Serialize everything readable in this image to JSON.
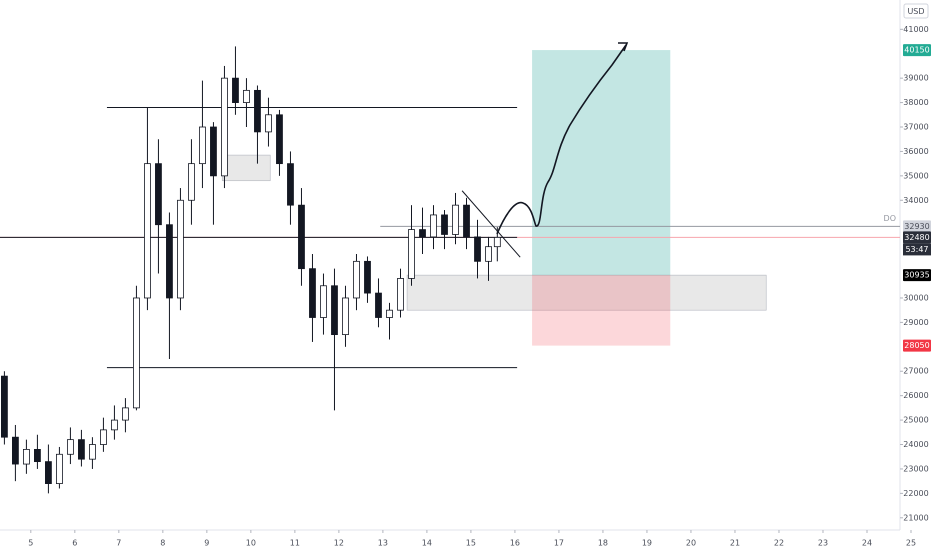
{
  "chart_data": {
    "type": "candlestick",
    "currency": "USD",
    "x": [
      4.4,
      4.65,
      4.9,
      5.15,
      5.4,
      5.65,
      5.9,
      6.15,
      6.4,
      6.65,
      6.9,
      7.15,
      7.4,
      7.65,
      7.9,
      8.15,
      8.4,
      8.65,
      8.9,
      9.15,
      9.4,
      9.65,
      9.9,
      10.15,
      10.4,
      10.65,
      10.9,
      11.15,
      11.4,
      11.65,
      11.9,
      12.15,
      12.4,
      12.65,
      12.9,
      13.15,
      13.4,
      13.65,
      13.9,
      14.15,
      14.4,
      14.65,
      14.9,
      15.15,
      15.4,
      15.6
    ],
    "open": [
      26800,
      24300,
      23200,
      23800,
      23300,
      22400,
      23600,
      24200,
      23400,
      24000,
      24600,
      25000,
      25500,
      30000,
      35500,
      33000,
      30000,
      34000,
      35500,
      37000,
      35000,
      39000,
      38000,
      38500,
      36800,
      37500,
      35500,
      33800,
      31200,
      29200,
      30500,
      28500,
      30000,
      31500,
      30200,
      29200,
      29500,
      30800,
      32800,
      32500,
      33400,
      32600,
      33800,
      32500,
      31500,
      32100
    ],
    "high": [
      27000,
      24800,
      24200,
      24400,
      24000,
      23900,
      24700,
      24600,
      24300,
      25100,
      25600,
      25900,
      30500,
      37800,
      36500,
      33500,
      34500,
      36500,
      38900,
      37200,
      39500,
      40300,
      39000,
      38700,
      38200,
      37700,
      36000,
      34500,
      31800,
      31000,
      31200,
      30500,
      31800,
      31700,
      30800,
      29800,
      31200,
      33800,
      33700,
      33800,
      33600,
      34300,
      34100,
      33200,
      32500,
      32900
    ],
    "low": [
      24000,
      22500,
      22800,
      23000,
      22000,
      22200,
      23200,
      23100,
      23000,
      23700,
      24200,
      24500,
      25400,
      29500,
      31000,
      27500,
      29500,
      33000,
      34500,
      33000,
      34500,
      37500,
      37000,
      35500,
      36200,
      35000,
      33000,
      30500,
      28200,
      28500,
      25400,
      28000,
      29500,
      29800,
      28800,
      28300,
      29200,
      30500,
      31800,
      32000,
      32000,
      32200,
      32000,
      30800,
      30700,
      31500
    ],
    "close": [
      24300,
      23200,
      23800,
      23300,
      22400,
      23600,
      24200,
      23400,
      24000,
      24600,
      25000,
      25500,
      30000,
      35500,
      33000,
      30000,
      34000,
      35500,
      37000,
      35000,
      39000,
      38000,
      38500,
      36800,
      37500,
      35500,
      33800,
      31200,
      29200,
      30500,
      28500,
      30000,
      31500,
      30200,
      29200,
      29500,
      30800,
      32800,
      32500,
      33400,
      32600,
      33800,
      32500,
      31500,
      32100,
      32480
    ],
    "up_color": "#ffffff",
    "down_color": "#131722",
    "wick_color": "#131722",
    "xlim": [
      4.3,
      24.75
    ],
    "ylim": [
      20500,
      42200
    ],
    "xticks": [
      5,
      6,
      7,
      8,
      9,
      10,
      11,
      12,
      13,
      14,
      15,
      16,
      17,
      18,
      19,
      20,
      21,
      22,
      23,
      24,
      25
    ],
    "yticks": [
      21000,
      22000,
      23000,
      24000,
      25000,
      26000,
      27000,
      29000,
      30000,
      34000,
      35000,
      36000,
      37000,
      38000,
      39000,
      41000
    ],
    "levels": [
      {
        "value": 37800,
        "from": 6.73,
        "to": 16.05,
        "color": "#131722"
      },
      {
        "value": 32480,
        "from": 4.3,
        "to": 16.05,
        "color": "#131722"
      },
      {
        "value": 27150,
        "from": 6.73,
        "to": 16.05,
        "color": "#131722"
      },
      {
        "value": 32930,
        "from": 12.94,
        "to": 24.75,
        "color": "#9598a1",
        "label": "DO"
      }
    ],
    "zones": [
      {
        "top": 35850,
        "bottom": 34800,
        "from": 9.35,
        "to": 10.44
      },
      {
        "top": 30935,
        "bottom": 29500,
        "from": 13.55,
        "to": 21.71
      }
    ],
    "position": {
      "entry": 30935,
      "target": 40150,
      "stop": 28050,
      "from": 16.39,
      "to": 19.53
    },
    "trendline": {
      "x": [
        14.8,
        16.12
      ],
      "y": [
        34390,
        31670
      ]
    },
    "price_labels": [
      {
        "value": 40150,
        "color": "#22ab94",
        "text_color": "#ffffff"
      },
      {
        "value": 32930,
        "color": "#d1d4dc",
        "text_color": "#4a4e59"
      },
      {
        "value": 32480,
        "color": "#2a2e39",
        "text_color": "#ffffff",
        "countdown": "53:47"
      },
      {
        "value": 30935,
        "color": "#000000",
        "text_color": "#ffffff"
      },
      {
        "value": 28050,
        "color": "#f23645",
        "text_color": "#ffffff"
      }
    ]
  }
}
